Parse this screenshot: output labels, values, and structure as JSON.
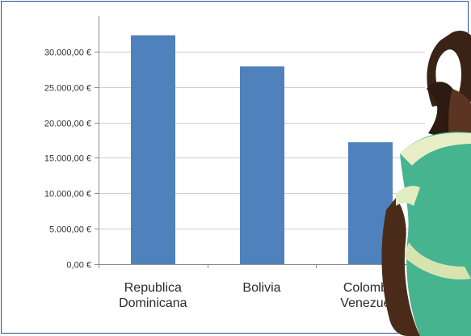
{
  "chart_data": {
    "type": "bar",
    "categories": [
      [
        "Republica",
        "Dominicana"
      ],
      [
        "Bolivia"
      ],
      [
        "Colombia",
        "Venezuela"
      ]
    ],
    "values": [
      32300,
      27900,
      17200
    ],
    "yticks": [
      "0,00 €",
      "5.000,00 €",
      "10.000,00 €",
      "15.000,00 €",
      "20.000,00 €",
      "25.000,00 €",
      "30.000,00 €"
    ],
    "ylim": [
      0,
      35000
    ],
    "grid": true,
    "bar_color": "#4f81bd",
    "title": "",
    "xlabel": "",
    "ylabel": ""
  },
  "overlay": {
    "image": "photo of a child in a green shirt, partially covering the chart on the right"
  }
}
